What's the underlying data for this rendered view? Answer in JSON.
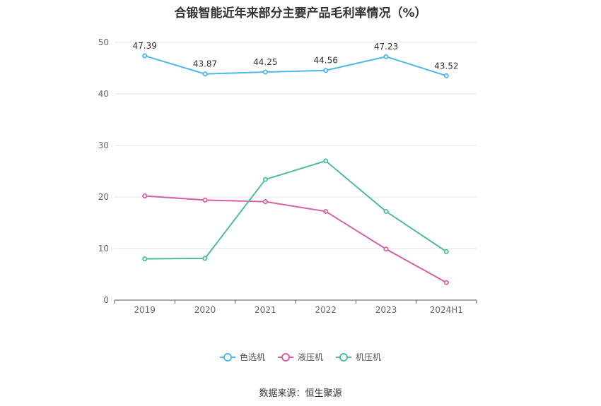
{
  "chart_data": {
    "type": "line",
    "title": "合锻智能近年来部分主要产品毛利率情况（%）",
    "categories": [
      "2019",
      "2020",
      "2021",
      "2022",
      "2023",
      "2024H1"
    ],
    "ylim": [
      0,
      50
    ],
    "yticks": [
      "0",
      "10",
      "20",
      "30",
      "40",
      "50"
    ],
    "grid": true,
    "legend_position": "bottom",
    "series": [
      {
        "name": "色选机",
        "color": "#4db8ea",
        "values": [
          47.39,
          43.87,
          44.25,
          44.56,
          47.23,
          43.52
        ],
        "labels": [
          "47.39",
          "43.87",
          "44.25",
          "44.56",
          "47.23",
          "43.52"
        ]
      },
      {
        "name": "液压机",
        "color": "#d65fa8",
        "values": [
          20.2,
          19.4,
          19.1,
          17.2,
          9.9,
          3.4
        ]
      },
      {
        "name": "机压机",
        "color": "#4fbba0",
        "values": [
          8.0,
          8.1,
          23.4,
          27.0,
          17.2,
          9.4
        ]
      }
    ],
    "source": "数据来源：恒生聚源"
  }
}
